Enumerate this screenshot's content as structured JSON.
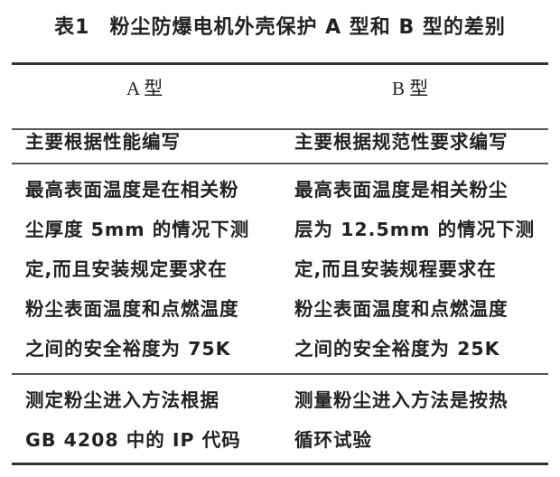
{
  "title": {
    "number": "表1",
    "text": "粉尘防爆电机外壳保护 A 型和 B 型的差别"
  },
  "table": {
    "headers": [
      "A 型",
      "B 型"
    ],
    "rows": [
      {
        "a": [
          "主要根据性能编写"
        ],
        "b": [
          "主要根据规范性要求编写"
        ]
      },
      {
        "a": [
          "最高表面温度是在相关粉",
          "尘厚度 5mm 的情况下测",
          "定,而且安装规定要求在",
          "粉尘表面温度和点燃温度",
          "之间的安全裕度为 75K"
        ],
        "b": [
          "最高表面温度是相关粉尘",
          "层为 12.5mm 的情况下测",
          "定,而且安装规程要求在",
          "粉尘表面温度和点燃温度",
          "之间的安全裕度为 25K"
        ]
      },
      {
        "a": [
          "测定粉尘进入方法根据",
          "GB 4208 中的 IP 代码"
        ],
        "b": [
          "测量粉尘进入方法是按热",
          "循环试验"
        ]
      }
    ]
  }
}
